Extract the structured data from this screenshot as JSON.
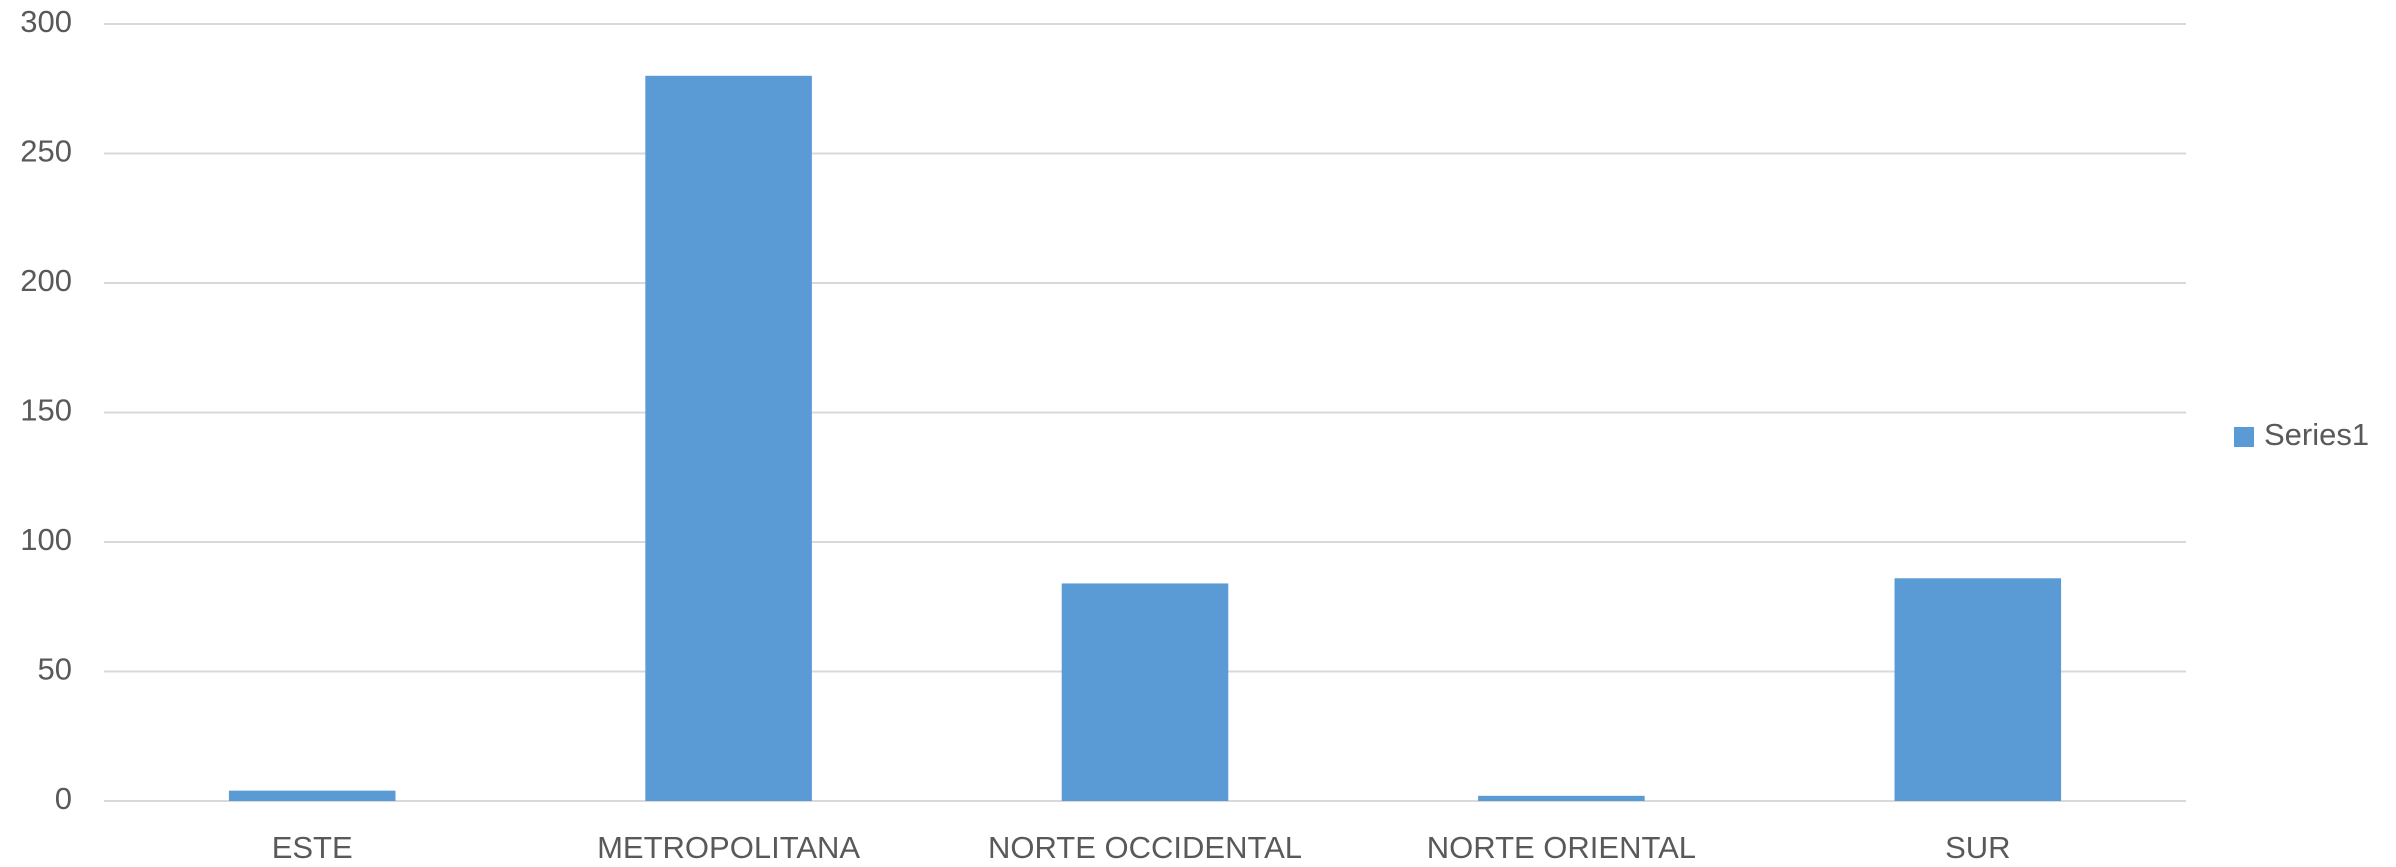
{
  "chart_data": {
    "type": "bar",
    "categories": [
      "ESTE",
      "METROPOLITANA",
      "NORTE OCCIDENTAL",
      "NORTE ORIENTAL",
      "SUR"
    ],
    "series": [
      {
        "name": "Series1",
        "color": "#5b9bd5",
        "values": [
          4,
          280,
          84,
          2,
          86
        ]
      }
    ],
    "ylim": [
      0,
      300
    ],
    "yticks": [
      0,
      50,
      100,
      150,
      200,
      250,
      300
    ],
    "grid": true,
    "legend": "right"
  }
}
